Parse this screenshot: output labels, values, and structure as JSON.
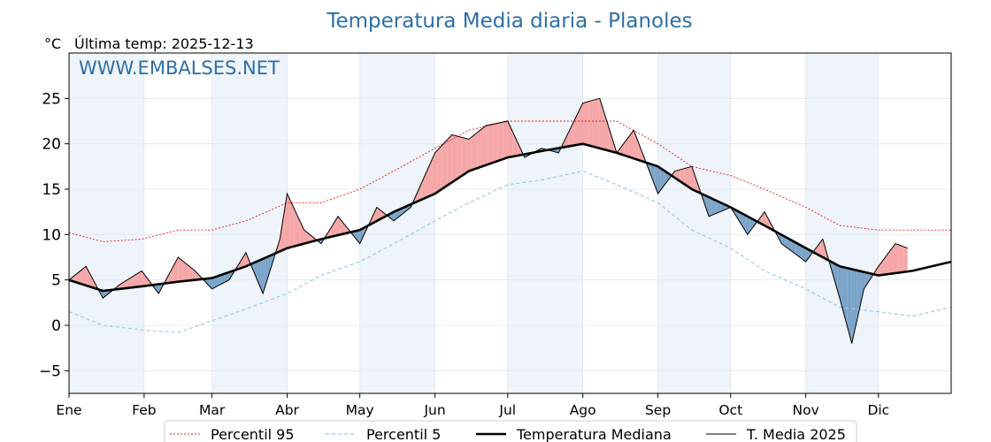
{
  "chart_data": {
    "type": "line",
    "title": "Temperatura Media diaria - Planoles",
    "unit_label": "°C",
    "subtitle": "Última temp: 2025-12-13",
    "watermark": "WWW.EMBALSES.NET",
    "ylim": [
      -7.5,
      30
    ],
    "yticks": [
      -5,
      0,
      5,
      10,
      15,
      20,
      25
    ],
    "ytick_labels": [
      "−5",
      "0",
      "5",
      "10",
      "15",
      "20",
      "25"
    ],
    "xlim": [
      1,
      365
    ],
    "months": [
      {
        "label": "Ene",
        "day": 1
      },
      {
        "label": "Feb",
        "day": 32
      },
      {
        "label": "Mar",
        "day": 60
      },
      {
        "label": "Abr",
        "day": 91
      },
      {
        "label": "May",
        "day": 121
      },
      {
        "label": "Jun",
        "day": 152
      },
      {
        "label": "Jul",
        "day": 182
      },
      {
        "label": "Ago",
        "day": 213
      },
      {
        "label": "Sep",
        "day": 244
      },
      {
        "label": "Oct",
        "day": 274
      },
      {
        "label": "Nov",
        "day": 305
      },
      {
        "label": "Dic",
        "day": 335
      }
    ],
    "grid": true,
    "legend_position": "bottom",
    "colors": {
      "p95": "#e31a1c",
      "p5": "#9ecae1",
      "median": "#000000",
      "current": "#000000",
      "above": "#f4a6a6",
      "below": "#7aa3c8",
      "band": "#eef4fa",
      "title": "#2c6fa6"
    },
    "series": [
      {
        "name": "Percentil 95",
        "style": "dotted-red",
        "x": [
          1,
          15,
          31,
          46,
          60,
          74,
          91,
          105,
          121,
          135,
          152,
          166,
          182,
          196,
          213,
          227,
          244,
          258,
          274,
          288,
          305,
          319,
          335,
          349,
          365
        ],
        "values": [
          10.2,
          9.2,
          9.5,
          10.5,
          10.5,
          11.5,
          13.5,
          13.5,
          15.0,
          17.0,
          19.5,
          21.5,
          22.5,
          22.5,
          22.5,
          22.5,
          20.0,
          17.5,
          16.5,
          15.0,
          13.0,
          11.0,
          10.5,
          10.5,
          10.5
        ]
      },
      {
        "name": "Percentil 5",
        "style": "dashed-blue",
        "x": [
          1,
          15,
          31,
          46,
          60,
          74,
          91,
          105,
          121,
          135,
          152,
          166,
          182,
          196,
          213,
          227,
          244,
          258,
          274,
          288,
          305,
          319,
          335,
          349,
          365
        ],
        "values": [
          1.5,
          0.0,
          -0.5,
          -0.8,
          0.5,
          1.8,
          3.5,
          5.5,
          7.0,
          9.0,
          11.5,
          13.5,
          15.5,
          16.0,
          17.0,
          15.5,
          13.5,
          10.5,
          8.5,
          6.0,
          4.0,
          2.0,
          1.5,
          1.0,
          2.0
        ]
      },
      {
        "name": "Temperatura Mediana",
        "style": "thick-black",
        "x": [
          1,
          15,
          31,
          46,
          60,
          74,
          91,
          105,
          121,
          135,
          152,
          166,
          182,
          196,
          213,
          227,
          244,
          258,
          274,
          288,
          305,
          319,
          335,
          349,
          365
        ],
        "values": [
          5.0,
          3.8,
          4.3,
          4.8,
          5.2,
          6.5,
          8.5,
          9.5,
          10.5,
          12.5,
          14.5,
          17.0,
          18.5,
          19.2,
          20.0,
          19.0,
          17.5,
          15.0,
          13.0,
          11.0,
          8.5,
          6.5,
          5.5,
          6.0,
          7.0
        ]
      },
      {
        "name": "T. Media 2025",
        "style": "thin-black",
        "x": [
          1,
          8,
          15,
          22,
          31,
          38,
          46,
          53,
          60,
          67,
          74,
          81,
          88,
          91,
          98,
          105,
          112,
          121,
          128,
          135,
          142,
          152,
          159,
          166,
          173,
          182,
          189,
          196,
          203,
          213,
          220,
          227,
          234,
          244,
          251,
          258,
          265,
          274,
          281,
          288,
          295,
          305,
          312,
          319,
          324,
          329,
          335,
          342,
          347
        ],
        "values": [
          5.0,
          6.5,
          3.0,
          4.5,
          6.0,
          3.5,
          7.5,
          6.0,
          4.0,
          5.0,
          8.0,
          3.5,
          9.5,
          14.5,
          10.5,
          9.0,
          12.0,
          9.0,
          13.0,
          11.5,
          13.0,
          19.0,
          21.0,
          20.5,
          22.0,
          22.5,
          18.5,
          19.5,
          19.0,
          24.5,
          25.0,
          19.0,
          21.5,
          14.5,
          17.0,
          17.5,
          12.0,
          13.0,
          10.0,
          12.5,
          9.0,
          7.0,
          9.5,
          3.0,
          -2.0,
          4.0,
          6.5,
          9.0,
          8.5
        ]
      }
    ],
    "legend": [
      "Percentil 95",
      "Percentil 5",
      "Temperatura Mediana",
      "T. Media 2025"
    ]
  }
}
